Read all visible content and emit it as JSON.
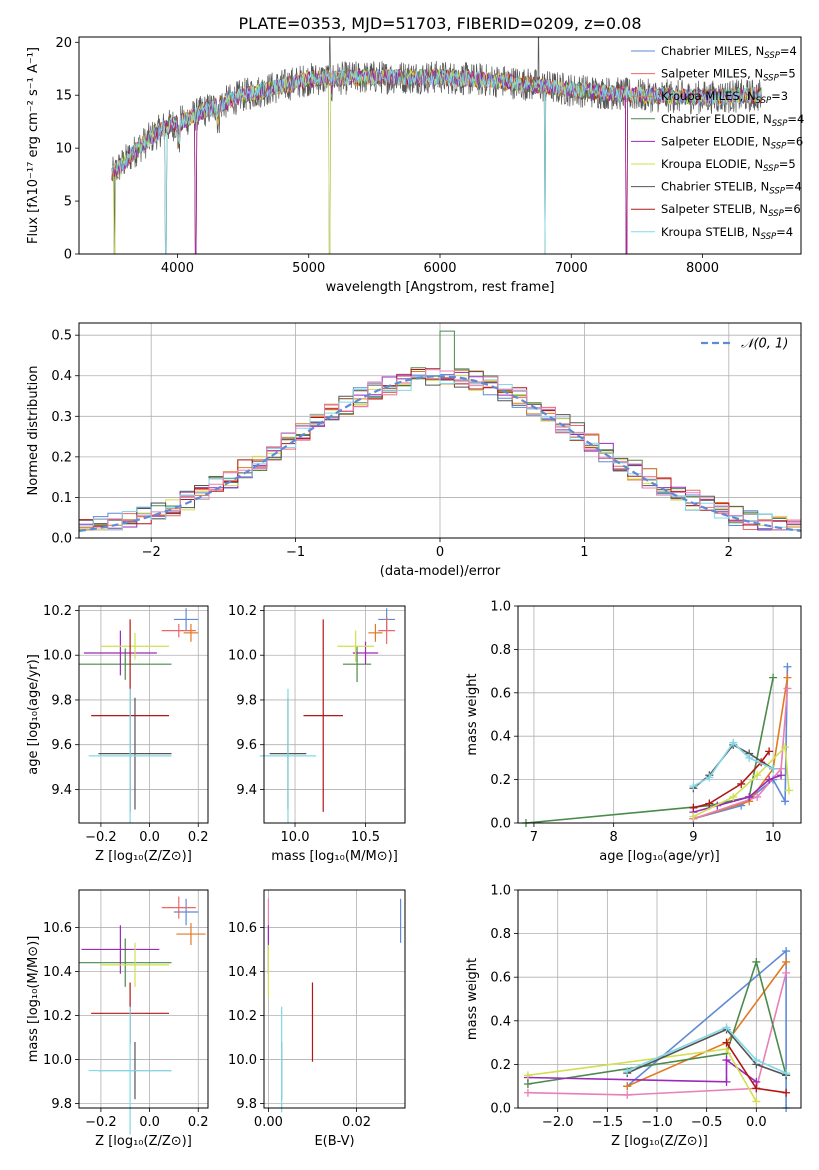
{
  "figure": {
    "title": "PLATE=0353, MJD=51703, FIBERID=0209, z=0.08"
  },
  "colors": {
    "Chabrier MILES": "#5f8ad6",
    "Salpeter MILES": "#ee6666",
    "Kroupa MILES": "#e07b22",
    "Chabrier ELODIE": "#4a8a4a",
    "Salpeter ELODIE": "#9a2ab8",
    "Kroupa ELODIE": "#d0e050",
    "Chabrier STELIB": "#555555",
    "Salpeter STELIB": "#b01818",
    "Kroupa STELIB": "#80d8e8",
    "pink": "#e87fb8",
    "normal_curve": "#5f8ad6",
    "grid": "#b0b0b0"
  },
  "legend_labels": {
    "spectrum": [
      {
        "base": "Chabrier MILES, N",
        "sub": "SSP",
        "tail": "=4"
      },
      {
        "base": "Salpeter MILES, N",
        "sub": "SSP",
        "tail": "=5"
      },
      {
        "base": "Kroupa MILES, N",
        "sub": "SSP",
        "tail": "=3"
      },
      {
        "base": "Chabrier ELODIE, N",
        "sub": "SSP",
        "tail": "=4"
      },
      {
        "base": "Salpeter ELODIE, N",
        "sub": "SSP",
        "tail": "=6"
      },
      {
        "base": "Kroupa ELODIE, N",
        "sub": "SSP",
        "tail": "=5"
      },
      {
        "base": "Chabrier STELIB, N",
        "sub": "SSP",
        "tail": "=4"
      },
      {
        "base": "Salpeter STELIB, N",
        "sub": "SSP",
        "tail": "=6"
      },
      {
        "base": "Kroupa STELIB, N",
        "sub": "SSP",
        "tail": "=4"
      }
    ],
    "hist": "𝒩(0, 1)"
  },
  "chart_data": [
    {
      "id": "spectrum",
      "type": "line",
      "xlabel": "wavelength [Angstrom, rest frame]",
      "ylabel": "Flux [fλ10⁻¹⁷ erg cm⁻² s⁻¹ A⁻¹]",
      "xlim": [
        3250,
        8750
      ],
      "ylim": [
        0,
        20.5
      ],
      "xticks": [
        4000,
        5000,
        6000,
        7000,
        8000
      ],
      "yticks": [
        0,
        5,
        10,
        15,
        20
      ],
      "legend": "top-right",
      "data_range": [
        3500,
        8450
      ],
      "continuum": [
        [
          3500,
          7.5
        ],
        [
          3700,
          10
        ],
        [
          3900,
          12
        ],
        [
          4000,
          12.3
        ],
        [
          4200,
          13.5
        ],
        [
          4500,
          15
        ],
        [
          5000,
          16.5
        ],
        [
          5500,
          16.7
        ],
        [
          6000,
          16.7
        ],
        [
          6500,
          16.3
        ],
        [
          7000,
          15.5
        ],
        [
          7500,
          15
        ],
        [
          8000,
          14.8
        ],
        [
          8450,
          15
        ]
      ],
      "glitches": [
        3520,
        3910,
        4140,
        5160,
        6800,
        7420
      ]
    },
    {
      "id": "residual_hist",
      "type": "bar",
      "xlabel": "(data-model)/error",
      "ylabel": "Normed distribution",
      "xlim": [
        -2.5,
        2.5
      ],
      "ylim": [
        0,
        0.53
      ],
      "xticks": [
        -2,
        -1,
        0,
        1,
        2
      ],
      "yticks": [
        0,
        0.1,
        0.2,
        0.3,
        0.4,
        0.5
      ],
      "bin_width": 0.1,
      "bin_start": -2.5,
      "legend": "top-right",
      "peak_bin_value": 0.51
    },
    {
      "id": "age_vs_Z",
      "type": "scatter",
      "xlabel": "Z [log₁₀(Z/Z⊙)]",
      "ylabel": "age  [log₁₀(age/yr)]",
      "xlim": [
        -0.29,
        0.24
      ],
      "ylim": [
        9.25,
        10.22
      ],
      "xticks": [
        -0.2,
        0.0,
        0.2
      ],
      "yticks": [
        9.4,
        9.6,
        9.8,
        10.0,
        10.2
      ],
      "points": [
        {
          "s": "Chabrier MILES",
          "x": 0.15,
          "y": 10.16,
          "xe": 0.05,
          "ye": 0.05
        },
        {
          "s": "Salpeter MILES",
          "x": 0.12,
          "y": 10.11,
          "xe": 0.07,
          "ye": 0.03
        },
        {
          "s": "Kroupa MILES",
          "x": 0.17,
          "y": 10.1,
          "xe": 0.03,
          "ye": 0.04
        },
        {
          "s": "Chabrier ELODIE",
          "x": -0.1,
          "y": 9.96,
          "xe": 0.19,
          "ye": 0.07
        },
        {
          "s": "Salpeter ELODIE",
          "x": -0.12,
          "y": 10.01,
          "xe": 0.15,
          "ye": 0.1
        },
        {
          "s": "Kroupa ELODIE",
          "x": -0.06,
          "y": 10.04,
          "xe": 0.14,
          "ye": 0.06
        },
        {
          "s": "Chabrier STELIB",
          "x": -0.06,
          "y": 9.56,
          "xe": 0.15,
          "ye": 0.25
        },
        {
          "s": "Salpeter STELIB",
          "x": -0.08,
          "y": 9.73,
          "xe": 0.16,
          "ye": 0.43
        },
        {
          "s": "Kroupa STELIB",
          "x": -0.08,
          "y": 9.55,
          "xe": 0.17,
          "ye": 0.3
        }
      ]
    },
    {
      "id": "age_vs_mass",
      "type": "scatter",
      "xlabel": "mass [log₁₀(M/M⊙)]",
      "ylabel": "",
      "xlim": [
        9.78,
        10.78
      ],
      "ylim": [
        9.25,
        10.22
      ],
      "xticks": [
        10.0,
        10.5
      ],
      "yticks": [
        9.4,
        9.6,
        9.8,
        10.0,
        10.2
      ],
      "points": [
        {
          "s": "Chabrier MILES",
          "x": 10.65,
          "y": 10.16,
          "xe": 0.06,
          "ye": 0.05
        },
        {
          "s": "Salpeter MILES",
          "x": 10.65,
          "y": 10.11,
          "xe": 0.06,
          "ye": 0.06
        },
        {
          "s": "Kroupa MILES",
          "x": 10.57,
          "y": 10.1,
          "xe": 0.05,
          "ye": 0.04
        },
        {
          "s": "Chabrier ELODIE",
          "x": 10.44,
          "y": 9.96,
          "xe": 0.1,
          "ye": 0.08
        },
        {
          "s": "Salpeter ELODIE",
          "x": 10.5,
          "y": 10.01,
          "xe": 0.09,
          "ye": 0.05
        },
        {
          "s": "Kroupa ELODIE",
          "x": 10.43,
          "y": 10.04,
          "xe": 0.13,
          "ye": 0.07
        },
        {
          "s": "Chabrier STELIB",
          "x": 9.95,
          "y": 9.56,
          "xe": 0.13,
          "ye": 0.25
        },
        {
          "s": "Salpeter STELIB",
          "x": 10.2,
          "y": 9.73,
          "xe": 0.14,
          "ye": 0.43
        },
        {
          "s": "Kroupa STELIB",
          "x": 9.95,
          "y": 9.55,
          "xe": 0.2,
          "ye": 0.3
        }
      ]
    },
    {
      "id": "weight_vs_age",
      "type": "line",
      "xlabel": "age  [log₁₀(age/yr)]",
      "ylabel": "mass weight",
      "xlim": [
        6.8,
        10.35
      ],
      "ylim": [
        0,
        1.0
      ],
      "xticks": [
        7,
        8,
        9,
        10
      ],
      "xtick_labels": [
        "7",
        "8",
        "9",
        "10"
      ],
      "yticks": [
        0,
        0.2,
        0.4,
        0.6,
        0.8,
        1.0
      ],
      "series": [
        {
          "s": "Chabrier MILES",
          "x": [
            9.0,
            9.6,
            10.0,
            10.15,
            10.18
          ],
          "y": [
            0.02,
            0.08,
            0.2,
            0.1,
            0.72
          ]
        },
        {
          "s": "Kroupa MILES",
          "x": [
            9.0,
            9.7,
            10.0,
            10.18
          ],
          "y": [
            0.02,
            0.1,
            0.25,
            0.67
          ]
        },
        {
          "s": "pink",
          "x": [
            9.0,
            9.8,
            10.1,
            10.18
          ],
          "y": [
            0.02,
            0.12,
            0.25,
            0.62
          ]
        },
        {
          "s": "Chabrier ELODIE",
          "x": [
            6.9,
            9.2,
            9.7,
            10.0
          ],
          "y": [
            0.0,
            0.08,
            0.12,
            0.67
          ]
        },
        {
          "s": "Salpeter ELODIE",
          "x": [
            9.0,
            9.3,
            9.7,
            9.95,
            10.1
          ],
          "y": [
            0.05,
            0.08,
            0.12,
            0.2,
            0.22
          ]
        },
        {
          "s": "Kroupa ELODIE",
          "x": [
            9.0,
            9.5,
            9.8,
            10.15,
            10.2
          ],
          "y": [
            0.03,
            0.12,
            0.22,
            0.35,
            0.15
          ]
        },
        {
          "s": "Chabrier STELIB",
          "x": [
            9.0,
            9.2,
            9.5,
            9.7,
            10.0
          ],
          "y": [
            0.16,
            0.22,
            0.36,
            0.32,
            0.25
          ]
        },
        {
          "s": "Salpeter STELIB",
          "x": [
            9.0,
            9.2,
            9.6,
            9.85,
            9.95
          ],
          "y": [
            0.07,
            0.09,
            0.18,
            0.28,
            0.33
          ]
        },
        {
          "s": "Kroupa STELIB",
          "x": [
            9.0,
            9.2,
            9.5,
            9.7,
            10.0
          ],
          "y": [
            0.17,
            0.21,
            0.37,
            0.3,
            0.25
          ]
        }
      ]
    },
    {
      "id": "mass_vs_Z",
      "type": "scatter",
      "xlabel": "Z [log₁₀(Z/Z⊙)]",
      "ylabel": "mass [log₁₀(M/M⊙)]",
      "xlim": [
        -0.29,
        0.24
      ],
      "ylim": [
        9.78,
        10.77
      ],
      "xticks": [
        -0.2,
        0.0,
        0.2
      ],
      "yticks": [
        9.8,
        10.0,
        10.2,
        10.4,
        10.6
      ],
      "points": [
        {
          "s": "Chabrier MILES",
          "x": 0.15,
          "y": 10.67,
          "xe": 0.05,
          "ye": 0.06
        },
        {
          "s": "Salpeter MILES",
          "x": 0.12,
          "y": 10.69,
          "xe": 0.07,
          "ye": 0.05
        },
        {
          "s": "Kroupa MILES",
          "x": 0.17,
          "y": 10.57,
          "xe": 0.06,
          "ye": 0.05
        },
        {
          "s": "Chabrier ELODIE",
          "x": -0.1,
          "y": 10.44,
          "xe": 0.19,
          "ye": 0.11
        },
        {
          "s": "Salpeter ELODIE",
          "x": -0.12,
          "y": 10.5,
          "xe": 0.16,
          "ye": 0.11
        },
        {
          "s": "Kroupa ELODIE",
          "x": -0.06,
          "y": 10.43,
          "xe": 0.14,
          "ye": 0.1
        },
        {
          "s": "Chabrier STELIB",
          "x": -0.06,
          "y": 9.95,
          "xe": 0.15,
          "ye": 0.13
        },
        {
          "s": "Salpeter STELIB",
          "x": -0.08,
          "y": 10.21,
          "xe": 0.16,
          "ye": 0.14
        },
        {
          "s": "Kroupa STELIB",
          "x": -0.08,
          "y": 9.95,
          "xe": 0.17,
          "ye": 0.29
        }
      ]
    },
    {
      "id": "mass_vs_EBV",
      "type": "scatter",
      "xlabel": "E(B-V)",
      "ylabel": "",
      "xlim": [
        -0.001,
        0.031
      ],
      "ylim": [
        9.78,
        10.77
      ],
      "xticks": [
        0.0,
        0.02
      ],
      "yticks": [
        9.8,
        10.0,
        10.2,
        10.4,
        10.6
      ],
      "points": [
        {
          "s": "Chabrier MILES",
          "x": 0.03,
          "y": 10.63,
          "xe": 0,
          "ye": 0.1
        },
        {
          "s": "pink",
          "x": 0.0,
          "y": 10.63,
          "xe": 0,
          "ye": 0.1
        },
        {
          "s": "Salpeter ELODIE",
          "x": 0.0,
          "y": 10.5,
          "xe": 0,
          "ye": 0.11
        },
        {
          "s": "Kroupa ELODIE",
          "x": 0.0,
          "y": 10.4,
          "xe": 0,
          "ye": 0.12
        },
        {
          "s": "Chabrier STELIB",
          "x": 0.003,
          "y": 9.95,
          "xe": 0,
          "ye": 0.13
        },
        {
          "s": "Salpeter STELIB",
          "x": 0.01,
          "y": 10.17,
          "xe": 0,
          "ye": 0.18
        },
        {
          "s": "Kroupa STELIB",
          "x": 0.003,
          "y": 10.0,
          "xe": 0,
          "ye": 0.24
        }
      ]
    },
    {
      "id": "weight_vs_Z",
      "type": "line",
      "xlabel": "Z [log₁₀(Z/Z⊙)]",
      "ylabel": "mass weight",
      "xlim": [
        -2.4,
        0.45
      ],
      "ylim": [
        0,
        1.0
      ],
      "xticks": [
        -2.0,
        -1.5,
        -1.0,
        -0.5,
        0.0
      ],
      "xtick_labels": [
        "−2.0",
        "−1.5",
        "−1.0",
        "−0.5",
        "0.0"
      ],
      "yticks": [
        0,
        0.2,
        0.4,
        0.6,
        0.8,
        1.0
      ],
      "series": [
        {
          "s": "Chabrier MILES",
          "x": [
            -1.3,
            0.3,
            0.3
          ],
          "y": [
            0.1,
            0.72,
            0.0
          ]
        },
        {
          "s": "Kroupa MILES",
          "x": [
            -1.3,
            -0.3,
            0.3
          ],
          "y": [
            0.1,
            0.3,
            0.67
          ]
        },
        {
          "s": "pink",
          "x": [
            -2.3,
            -1.3,
            0.0,
            0.3
          ],
          "y": [
            0.07,
            0.06,
            0.09,
            0.62
          ]
        },
        {
          "s": "Chabrier ELODIE",
          "x": [
            -2.3,
            -0.3,
            0.0,
            0.3
          ],
          "y": [
            0.11,
            0.25,
            0.67,
            0.15
          ]
        },
        {
          "s": "Salpeter ELODIE",
          "x": [
            -2.3,
            -0.3,
            -0.3,
            0.0
          ],
          "y": [
            0.14,
            0.12,
            0.22,
            0.12
          ]
        },
        {
          "s": "Kroupa ELODIE",
          "x": [
            -2.3,
            -0.3,
            0.0
          ],
          "y": [
            0.15,
            0.27,
            0.03
          ]
        },
        {
          "s": "Chabrier STELIB",
          "x": [
            -1.3,
            -0.3,
            0.0,
            0.3
          ],
          "y": [
            0.16,
            0.36,
            0.2,
            0.15
          ]
        },
        {
          "s": "Salpeter STELIB",
          "x": [
            -0.3,
            0.0,
            0.3
          ],
          "y": [
            0.3,
            0.09,
            0.07
          ]
        },
        {
          "s": "Kroupa STELIB",
          "x": [
            -1.3,
            -0.3,
            0.0,
            0.3
          ],
          "y": [
            0.17,
            0.37,
            0.22,
            0.16
          ]
        }
      ]
    }
  ]
}
